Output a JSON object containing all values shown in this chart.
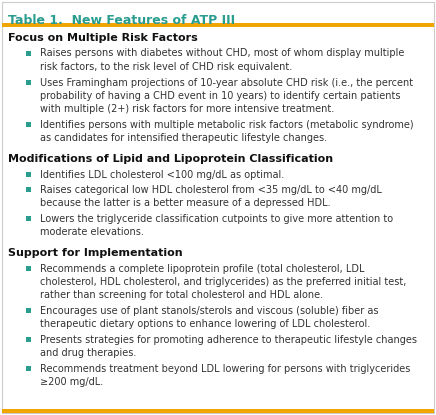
{
  "title": "Table 1.  New Features of ATP III",
  "title_color": "#2a9d8f",
  "header_line_color": "#f0a500",
  "bg_color": "#ffffff",
  "border_color": "#cccccc",
  "bullet_color": "#2a9d8f",
  "section_headers": [
    "Focus on Multiple Risk Factors",
    "Modifications of Lipid and Lipoprotein Classification",
    "Support for Implementation"
  ],
  "sections": [
    [
      "Raises persons with diabetes without CHD, most of whom display multiple\nrisk factors, to the risk level of CHD risk equivalent.",
      "Uses Framingham projections of 10-year absolute CHD risk (i.e., the percent\nprobability of having a CHD event in 10 years) to identify certain patients\nwith multiple (2+) risk factors for more intensive treatment.",
      "Identifies persons with multiple metabolic risk factors (metabolic syndrome)\nas candidates for intensified therapeutic lifestyle changes."
    ],
    [
      "Identifies LDL cholesterol <100 mg/dL as optimal.",
      "Raises categorical low HDL cholesterol from <35 mg/dL to <40 mg/dL\nbecause the latter is a better measure of a depressed HDL.",
      "Lowers the triglyceride classification cutpoints to give more attention to\nmoderate elevations."
    ],
    [
      "Recommends a complete lipoprotein profile (total cholesterol, LDL\ncholesterol, HDL cholesterol, and triglycerides) as the preferred initial test,\nrather than screening for total cholesterol and HDL alone.",
      "Encourages use of plant stanols/sterols and viscous (soluble) fiber as\ntherapeutic dietary options to enhance lowering of LDL cholesterol.",
      "Presents strategies for promoting adherence to therapeutic lifestyle changes\nand drug therapies.",
      "Recommends treatment beyond LDL lowering for persons with triglycerides\n≥200 mg/dL."
    ]
  ],
  "font_size_title": 9.0,
  "font_size_header": 8.0,
  "font_size_body": 7.0
}
